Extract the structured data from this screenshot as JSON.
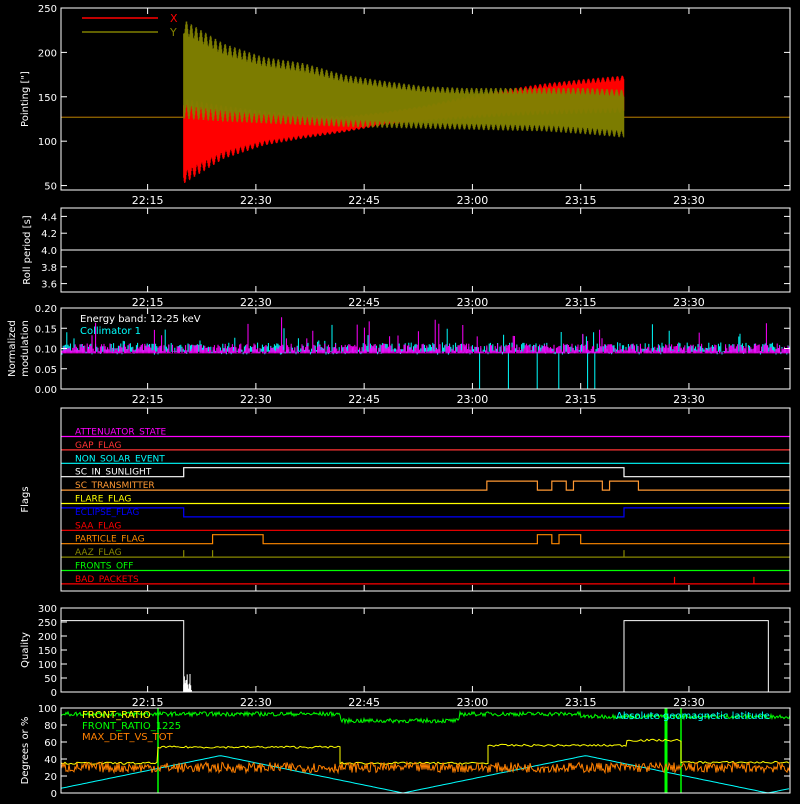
{
  "chart_data": [
    {
      "type": "line",
      "ylabel": "Pointing [\"]",
      "ylim": [
        45,
        250
      ],
      "yticks": [
        50,
        100,
        150,
        200,
        250
      ],
      "xticks": [
        "22:15",
        "22:30",
        "22:45",
        "23:00",
        "23:15",
        "23:30"
      ],
      "legend_placement": "top-left",
      "series": [
        {
          "name": "X",
          "color": "#ff0000",
          "baseline": 127,
          "start_time": "22:20",
          "end_time": "23:21",
          "envelope_low": [
            52,
            80,
            95,
            103,
            110,
            118,
            122,
            125,
            128,
            130,
            131,
            132
          ],
          "envelope_high": [
            148,
            140,
            134,
            130,
            128,
            133,
            140,
            150,
            158,
            165,
            170,
            174
          ]
        },
        {
          "name": "Y",
          "color": "#808000",
          "baseline": 127,
          "start_time": "22:20",
          "end_time": "23:21",
          "envelope_low": [
            125,
            122,
            120,
            118,
            116,
            115,
            114,
            113,
            112,
            111,
            108,
            104
          ],
          "envelope_high": [
            237,
            210,
            195,
            188,
            175,
            168,
            162,
            160,
            160,
            160,
            160,
            158
          ]
        }
      ]
    },
    {
      "type": "line",
      "ylabel": "Roll period [s]",
      "ylim": [
        3.5,
        4.5
      ],
      "yticks": [
        "3.6",
        "3.8",
        "4.0",
        "4.2",
        "4.4"
      ],
      "xticks": [
        "22:15",
        "22:30",
        "22:45",
        "23:00",
        "23:15",
        "23:30"
      ],
      "series": [
        {
          "color": "#ffffff",
          "value": 4.0
        }
      ]
    },
    {
      "type": "line",
      "ylabel": "Normalized modulation",
      "ylim": [
        0,
        0.2
      ],
      "yticks": [
        "0.00",
        "0.05",
        "0.10",
        "0.15",
        "0.20"
      ],
      "xticks": [
        "22:15",
        "22:30",
        "22:45",
        "23:00",
        "23:15",
        "23:30"
      ],
      "annotation": "Energy band: 12-25 keV",
      "series": [
        {
          "name": "Collimator 1",
          "color": "#00ffff",
          "mean": 0.1,
          "drops_to_zero_at": [
            "23:01",
            "23:05",
            "23:09",
            "23:12",
            "23:16",
            "23:17"
          ]
        },
        {
          "color": "#ff00ff",
          "mean": 0.1
        }
      ]
    },
    {
      "type": "line",
      "ylabel": "Flags",
      "xticks": [
        "22:15",
        "22:30",
        "22:45",
        "23:00",
        "23:15",
        "23:30"
      ],
      "flags": [
        {
          "name": "ATTENUATOR_STATE",
          "color": "#ff00ff",
          "high_intervals": []
        },
        {
          "name": "GAP_FLAG",
          "color": "#ff3333",
          "high_intervals": []
        },
        {
          "name": "NON_SOLAR_EVENT",
          "color": "#00ffff",
          "high_intervals": []
        },
        {
          "name": "SC_IN_SUNLIGHT",
          "color": "#ffffff",
          "high_intervals": [
            [
              "22:20",
              "23:21"
            ]
          ]
        },
        {
          "name": "SC_TRANSMITTER",
          "color": "#ff9933",
          "high_intervals": [
            [
              "23:02",
              "23:09"
            ],
            [
              "23:11",
              "23:13"
            ],
            [
              "23:14",
              "23:18"
            ],
            [
              "23:19",
              "23:23"
            ]
          ]
        },
        {
          "name": "FLARE_FLAG",
          "color": "#ffff00",
          "high_intervals": []
        },
        {
          "name": "ECLIPSE_FLAG",
          "color": "#0000ff",
          "low_intervals": [
            [
              "22:20",
              "23:21"
            ]
          ]
        },
        {
          "name": "SAA_FLAG",
          "color": "#ff0000",
          "high_intervals": []
        },
        {
          "name": "PARTICLE_FLAG",
          "color": "#ff8800",
          "high_intervals": [
            [
              "22:24",
              "22:31"
            ],
            [
              "23:09",
              "23:11"
            ],
            [
              "23:12",
              "23:15"
            ]
          ]
        },
        {
          "name": "AAZ_FLAG",
          "color": "#888800",
          "spikes": [
            "22:20",
            "22:24",
            "23:21"
          ]
        },
        {
          "name": "FRONTS_OFF",
          "color": "#00ff00",
          "high_intervals": []
        },
        {
          "name": "BAD_PACKETS",
          "color": "#ff0000",
          "spikes": [
            "23:28",
            "23:39"
          ]
        }
      ]
    },
    {
      "type": "line",
      "ylabel": "Quality",
      "ylim": [
        0,
        300
      ],
      "yticks": [
        0,
        50,
        100,
        150,
        200,
        250,
        300
      ],
      "xticks": [
        "22:15",
        "22:30",
        "22:45",
        "23:00",
        "23:15",
        "23:30"
      ],
      "series": [
        {
          "color": "#ffffff",
          "high_value": 255,
          "high_intervals": [
            [
              "22:05",
              "22:20"
            ],
            [
              "23:21",
              "23:41"
            ]
          ]
        }
      ]
    },
    {
      "type": "line",
      "ylabel": "Degrees or %",
      "ylim": [
        0,
        100
      ],
      "yticks": [
        0,
        20,
        40,
        60,
        80,
        100
      ],
      "annotation": "Absolute geomagnetic latitude",
      "series": [
        {
          "name": "FRONT_RATIO",
          "color": "#ffff00"
        },
        {
          "name": "FRONT_RATIO_1225",
          "color": "#00ff00"
        },
        {
          "name": "MAX_DET_VS_TOT",
          "color": "#ff8000"
        },
        {
          "name": "Absolute geomagnetic latitude",
          "color": "#00ffff"
        }
      ]
    }
  ]
}
